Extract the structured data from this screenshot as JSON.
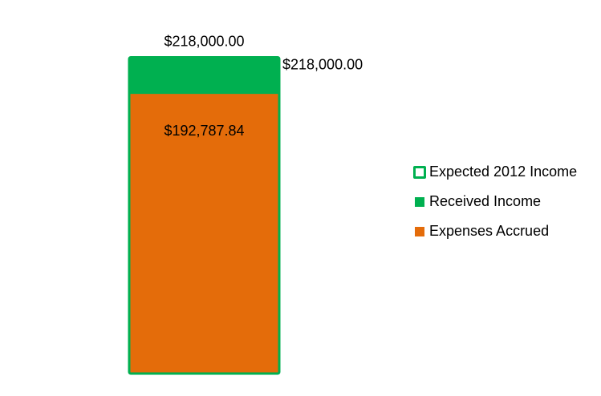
{
  "chart_data": {
    "type": "bar",
    "categories": [
      ""
    ],
    "series": [
      {
        "name": "Expected 2012 Income",
        "values": [
          218000.0
        ],
        "style": "outline",
        "color": "#00B050"
      },
      {
        "name": "Received Income",
        "values": [
          218000.0
        ],
        "style": "fill",
        "color": "#00B050"
      },
      {
        "name": "Expenses Accrued",
        "values": [
          192787.84
        ],
        "style": "fill",
        "color": "#E46C0A"
      }
    ],
    "data_labels": {
      "expected": "$218,000.00",
      "received": "$218,000.00",
      "expenses": "$192,787.84"
    },
    "ylim": [
      0,
      240000
    ],
    "grid": false,
    "axes_visible": false,
    "legend_position": "right",
    "title": "",
    "xlabel": "",
    "ylabel": ""
  }
}
